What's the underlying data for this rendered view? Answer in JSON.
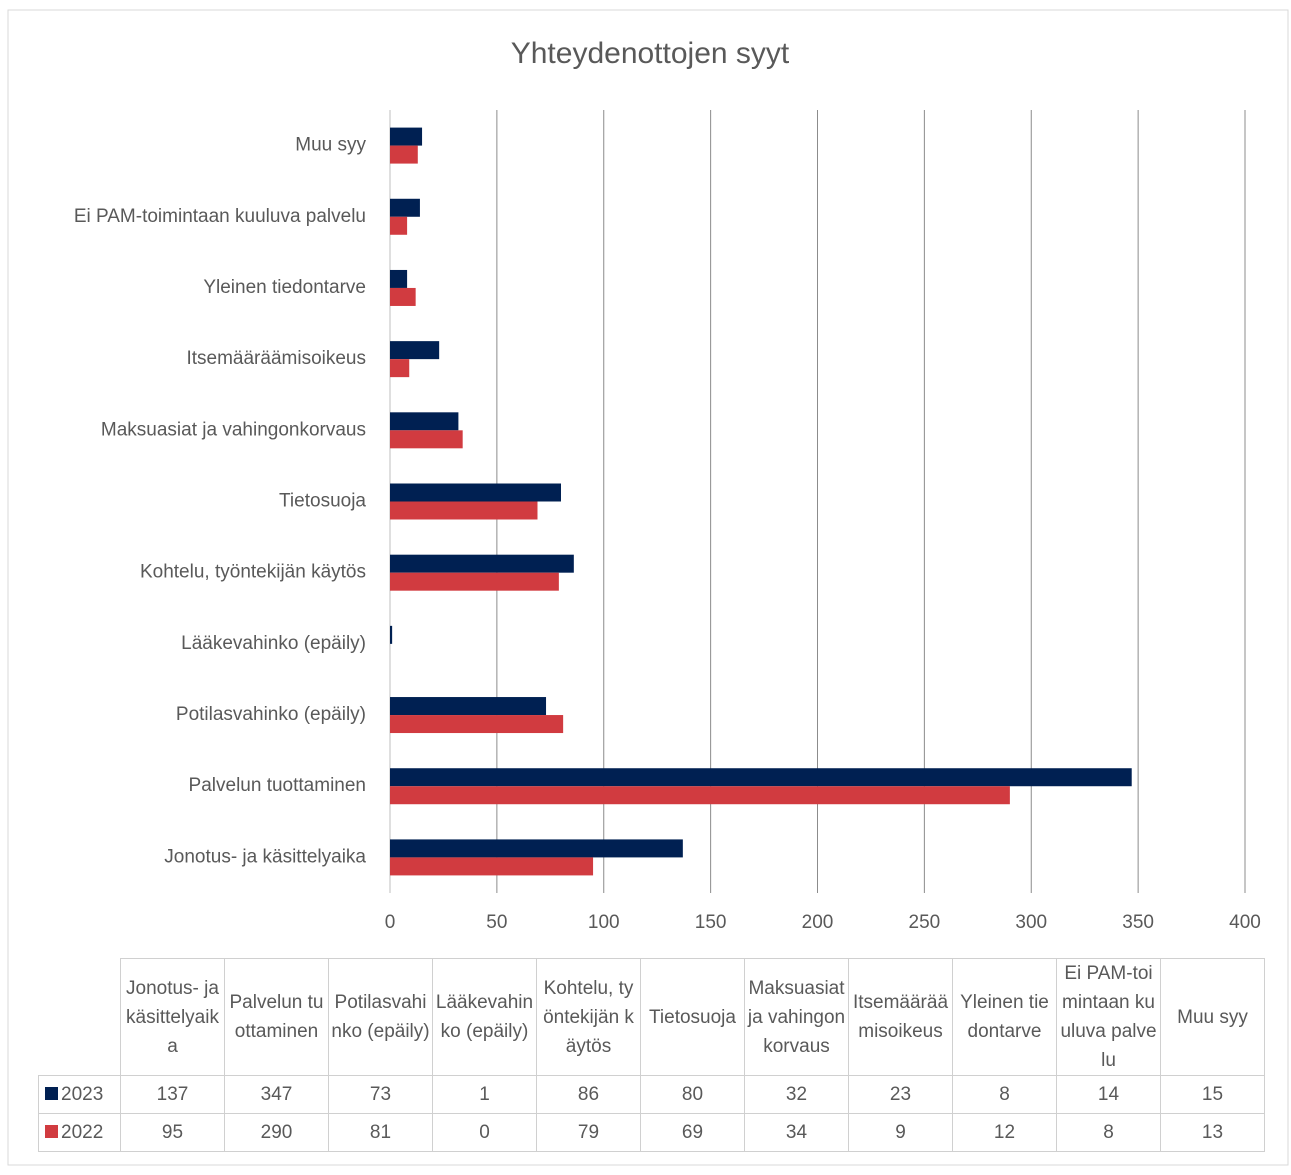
{
  "chart_data": {
    "type": "bar",
    "orientation": "horizontal",
    "title": "Yhteydenottojen syyt",
    "categories": [
      "Jonotus- ja käsittelyaika",
      "Palvelun tuottaminen",
      "Potilasvahinko (epäily)",
      "Lääkevahinko (epäily)",
      "Kohtelu, työntekijän käytös",
      "Tietosuoja",
      "Maksuasiat ja vahingonkorvaus",
      "Itsemääräämisoikeus",
      "Yleinen tiedontarve",
      "Ei PAM-toimintaan kuuluva palvelu",
      "Muu syy"
    ],
    "series": [
      {
        "name": "2023",
        "color": "#002052",
        "values": [
          137,
          347,
          73,
          1,
          86,
          80,
          32,
          23,
          8,
          14,
          15
        ]
      },
      {
        "name": "2022",
        "color": "#d13b40",
        "values": [
          95,
          290,
          81,
          0,
          79,
          69,
          34,
          9,
          12,
          8,
          13
        ]
      }
    ],
    "xlim": [
      0,
      400
    ],
    "xticks": [
      0,
      50,
      100,
      150,
      200,
      250,
      300,
      350,
      400
    ],
    "grid": true,
    "data_table": true
  }
}
